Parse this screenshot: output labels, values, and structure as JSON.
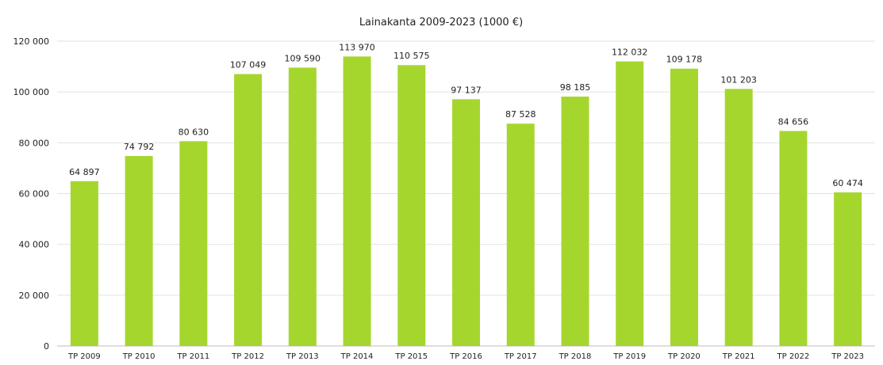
{
  "chart_data": {
    "type": "bar",
    "title": "Lainakanta  2009-2023 (1000 €)",
    "xlabel": "",
    "ylabel": "",
    "categories": [
      "TP 2009",
      "TP 2010",
      "TP 2011",
      "TP 2012",
      "TP 2013",
      "TP 2014",
      "TP 2015",
      "TP 2016",
      "TP 2017",
      "TP 2018",
      "TP 2019",
      "TP 2020",
      "TP 2021",
      "TP 2022",
      "TP 2023"
    ],
    "values": [
      64897,
      74792,
      80630,
      107049,
      109590,
      113970,
      110575,
      97137,
      87528,
      98185,
      112032,
      109178,
      101203,
      84656,
      60474
    ],
    "value_labels": [
      "64 897",
      "74 792",
      "80 630",
      "107 049",
      "109 590",
      "113 970",
      "110 575",
      "97 137",
      "87 528",
      "98 185",
      "112 032",
      "109 178",
      "101 203",
      "84 656",
      "60 474"
    ],
    "ylim": [
      0,
      120000
    ],
    "yticks": [
      0,
      20000,
      40000,
      60000,
      80000,
      100000,
      120000
    ],
    "ytick_labels": [
      "0",
      "20 000",
      "40 000",
      "60 000",
      "80 000",
      "100 000",
      "120 000"
    ],
    "grid": true,
    "legend": "none",
    "bar_color": "#a5d62e"
  }
}
